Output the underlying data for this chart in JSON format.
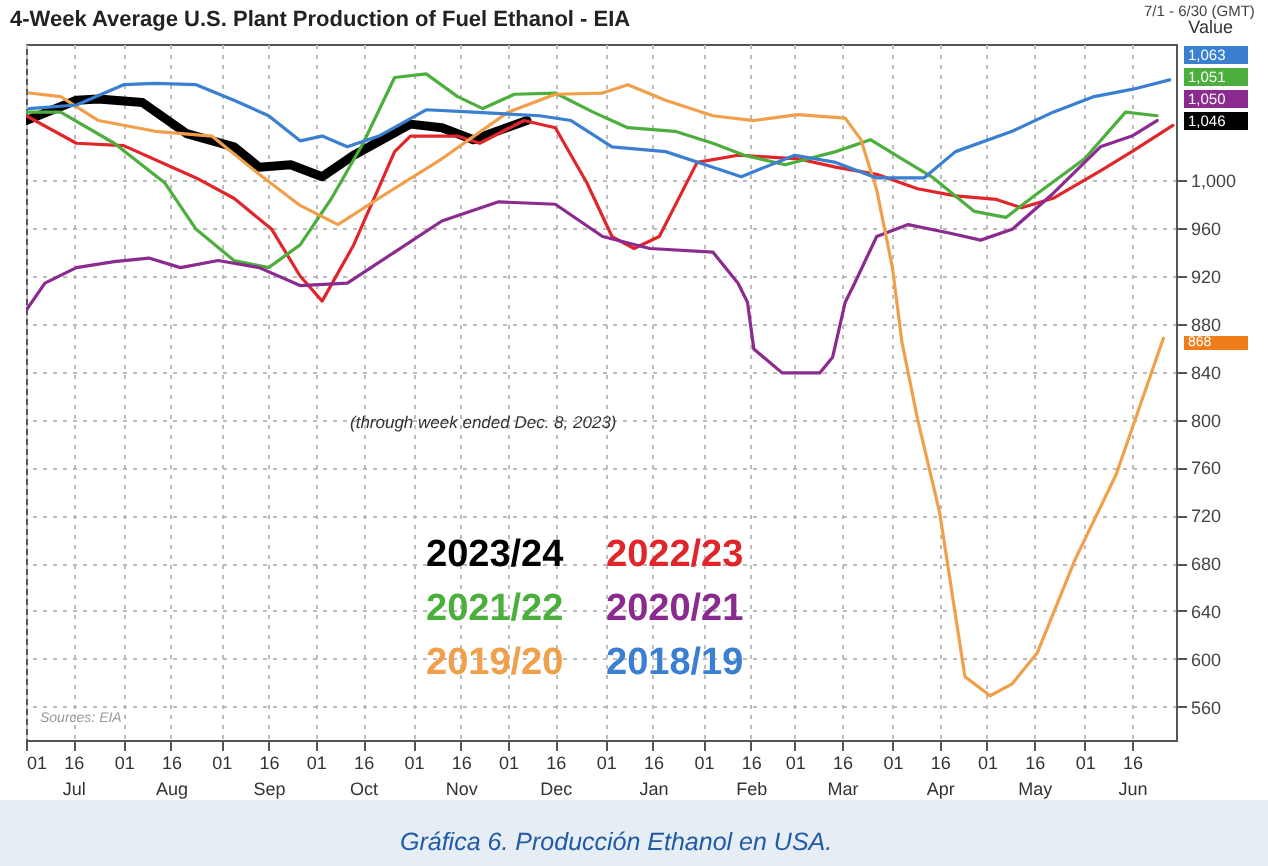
{
  "chart_data": {
    "type": "line",
    "title": "4-Week Average U.S. Plant Production of Fuel Ethanol - EIA",
    "ylabel": "Value",
    "xlim": [
      "2023-07-01",
      "2024-06-30"
    ],
    "ylim": [
      532,
      1114
    ],
    "xticks": [
      {
        "value": "2023-07-01",
        "label": "01"
      },
      {
        "value": "2023-07-16",
        "label": "16\nJul"
      },
      {
        "value": "2023-08-01",
        "label": "01"
      },
      {
        "value": "2023-08-16",
        "label": "16\nAug"
      },
      {
        "value": "2023-09-01",
        "label": "01"
      },
      {
        "value": "2023-09-16",
        "label": "16\nSep"
      },
      {
        "value": "2023-10-01",
        "label": "01"
      },
      {
        "value": "2023-10-16",
        "label": "16\nOct"
      },
      {
        "value": "2023-11-01",
        "label": "01"
      },
      {
        "value": "2023-11-16",
        "label": "16\nNov"
      },
      {
        "value": "2023-12-01",
        "label": "01"
      },
      {
        "value": "2023-12-16",
        "label": "16\nDec"
      },
      {
        "value": "2024-01-01",
        "label": "01"
      },
      {
        "value": "2024-01-16",
        "label": "16\nJan"
      },
      {
        "value": "2024-02-01",
        "label": "01"
      },
      {
        "value": "2024-02-16",
        "label": "16\nFeb"
      },
      {
        "value": "2024-03-01",
        "label": "01"
      },
      {
        "value": "2024-03-16",
        "label": "16\nMar"
      },
      {
        "value": "2024-04-01",
        "label": "01"
      },
      {
        "value": "2024-04-16",
        "label": "16\nApr"
      },
      {
        "value": "2024-05-01",
        "label": "01"
      },
      {
        "value": "2024-05-16",
        "label": "16\nMay"
      },
      {
        "value": "2024-06-01",
        "label": "01"
      },
      {
        "value": "2024-06-16",
        "label": "16\nJun"
      }
    ],
    "yticks": [
      560,
      600,
      640,
      680,
      720,
      760,
      800,
      840,
      880,
      920,
      960,
      {
        "value": 1000,
        "label": "1,000"
      }
    ],
    "grid": true,
    "legend": "bottom",
    "series": [
      {
        "name": "2023/24",
        "color": "#000000",
        "x": [
          "2023-07-01",
          "2023-07-17",
          "2023-07-24",
          "2023-08-07",
          "2023-08-21",
          "2023-09-05",
          "2023-09-13",
          "2023-09-23",
          "2023-10-03",
          "2023-10-13",
          "2023-10-31",
          "2023-11-10",
          "2023-11-20",
          "2023-12-07"
        ],
        "values": [
          1050,
          1067,
          1068,
          1065,
          1039,
          1028,
          1011,
          1013,
          1003,
          1021,
          1047,
          1044,
          1034,
          1050
        ]
      },
      {
        "name": "2022/23",
        "color": "#e0262b",
        "x": [
          "2023-07-01",
          "2023-07-17",
          "2023-08-01",
          "2023-08-24",
          "2023-09-05",
          "2023-09-17",
          "2023-09-26",
          "2023-10-03",
          "2023-10-13",
          "2023-10-26",
          "2023-10-31",
          "2023-11-15",
          "2023-11-22",
          "2023-12-06",
          "2023-12-16",
          "2023-12-26",
          "2024-01-03",
          "2024-01-10",
          "2024-01-18",
          "2024-01-30",
          "2024-02-12",
          "2024-03-02",
          "2024-03-14",
          "2024-03-27",
          "2024-04-09",
          "2024-04-21",
          "2024-05-04",
          "2024-05-12",
          "2024-05-22",
          "2024-06-06",
          "2024-06-16",
          "2024-06-29"
        ],
        "values": [
          1054,
          1031,
          1029,
          1002,
          985,
          959,
          920,
          899,
          946,
          1024,
          1037,
          1037,
          1031,
          1050,
          1044,
          998,
          953,
          943,
          953,
          1015,
          1021,
          1018,
          1011,
          1005,
          993,
          987,
          984,
          977,
          985,
          1008,
          1024,
          1046
        ]
      },
      {
        "name": "2021/22",
        "color": "#4cae3c",
        "x": [
          "2023-07-01",
          "2023-07-12",
          "2023-07-29",
          "2023-08-14",
          "2023-08-24",
          "2023-09-05",
          "2023-09-16",
          "2023-09-26",
          "2023-10-06",
          "2023-10-16",
          "2023-10-26",
          "2023-11-05",
          "2023-11-15",
          "2023-11-23",
          "2023-12-03",
          "2023-12-16",
          "2023-12-28",
          "2024-01-08",
          "2024-01-23",
          "2024-02-04",
          "2024-02-14",
          "2024-02-27",
          "2024-03-14",
          "2024-03-25",
          "2024-04-04",
          "2024-04-14",
          "2024-04-27",
          "2024-05-07",
          "2024-05-17",
          "2024-06-01",
          "2024-06-14",
          "2024-06-24"
        ],
        "values": [
          1057,
          1057,
          1031,
          998,
          959,
          933,
          927,
          946,
          985,
          1031,
          1086,
          1089,
          1070,
          1060,
          1072,
          1073,
          1057,
          1044,
          1041,
          1031,
          1021,
          1013,
          1024,
          1034,
          1018,
          1002,
          974,
          969,
          989,
          1018,
          1057,
          1054
        ]
      },
      {
        "name": "2020/21",
        "color": "#8b2a8f",
        "x": [
          "2023-07-01",
          "2023-07-07",
          "2023-07-17",
          "2023-07-29",
          "2023-08-09",
          "2023-08-19",
          "2023-08-31",
          "2023-09-13",
          "2023-09-26",
          "2023-10-11",
          "2023-10-26",
          "2023-11-10",
          "2023-11-28",
          "2023-12-16",
          "2023-12-31",
          "2024-01-15",
          "2024-02-04",
          "2024-02-12",
          "2024-02-15",
          "2024-02-17",
          "2024-02-26",
          "2024-03-09",
          "2024-03-13",
          "2024-03-17",
          "2024-03-20",
          "2024-03-27",
          "2024-04-06",
          "2024-04-19",
          "2024-04-29",
          "2024-05-09",
          "2024-05-22",
          "2024-06-06",
          "2024-06-16",
          "2024-06-24"
        ],
        "values": [
          891,
          914,
          927,
          932,
          935,
          927,
          933,
          927,
          912,
          914,
          940,
          966,
          982,
          980,
          953,
          943,
          940,
          914,
          898,
          859,
          839,
          839,
          852,
          898,
          914,
          953,
          963,
          956,
          950,
          959,
          989,
          1028,
          1037,
          1050
        ]
      },
      {
        "name": "2019/20",
        "color": "#f0a04b",
        "x": [
          "2023-07-02",
          "2023-07-12",
          "2023-07-24",
          "2023-08-11",
          "2023-08-29",
          "2023-09-13",
          "2023-09-26",
          "2023-10-08",
          "2023-10-21",
          "2023-11-10",
          "2023-12-01",
          "2023-12-16",
          "2023-12-31",
          "2024-01-08",
          "2024-01-20",
          "2024-02-04",
          "2024-02-17",
          "2024-03-02",
          "2024-03-17",
          "2024-03-22",
          "2024-03-27",
          "2024-04-01",
          "2024-04-04",
          "2024-04-09",
          "2024-04-16",
          "2024-04-24",
          "2024-05-02",
          "2024-05-09",
          "2024-05-17",
          "2024-05-29",
          "2024-06-11",
          "2024-06-26"
        ],
        "values": [
          1073,
          1070,
          1050,
          1041,
          1037,
          1005,
          979,
          963,
          985,
          1018,
          1057,
          1072,
          1073,
          1080,
          1067,
          1054,
          1050,
          1055,
          1052,
          1034,
          992,
          927,
          865,
          800,
          722,
          585,
          569,
          579,
          605,
          683,
          754,
          868
        ]
      },
      {
        "name": "2018/19",
        "color": "#3a7fd0",
        "x": [
          "2023-07-02",
          "2023-07-17",
          "2023-08-01",
          "2023-08-11",
          "2023-08-24",
          "2023-09-05",
          "2023-09-16",
          "2023-09-26",
          "2023-10-03",
          "2023-10-11",
          "2023-10-21",
          "2023-11-05",
          "2023-11-20",
          "2023-12-11",
          "2023-12-21",
          "2024-01-03",
          "2024-01-20",
          "2024-02-04",
          "2024-02-13",
          "2024-03-01",
          "2024-03-14",
          "2024-03-27",
          "2024-04-11",
          "2024-04-21",
          "2024-05-09",
          "2024-05-22",
          "2024-06-04",
          "2024-06-16",
          "2024-06-28"
        ],
        "values": [
          1060,
          1063,
          1080,
          1081,
          1080,
          1067,
          1054,
          1033,
          1037,
          1028,
          1037,
          1059,
          1057,
          1054,
          1050,
          1028,
          1024,
          1011,
          1003,
          1021,
          1015,
          1002,
          1002,
          1024,
          1041,
          1057,
          1070,
          1076,
          1084
        ]
      }
    ],
    "annotations": [
      "(through week ended Dec. 8, 2023)",
      "7/1 - 6/30 (GMT)",
      "1,063",
      "1,051",
      "1,050",
      "1,046",
      "868",
      "Sources: EIA",
      "Gráfica 6. Producción Ethanol en USA."
    ]
  }
}
